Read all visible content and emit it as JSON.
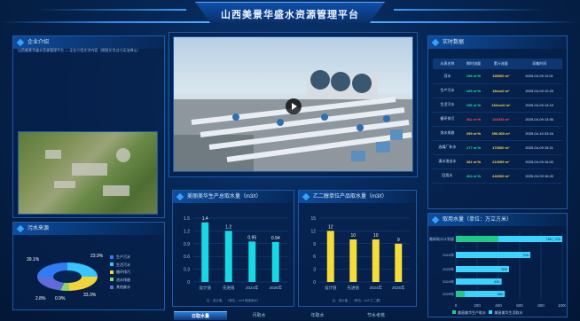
{
  "header": {
    "title": "山西美景华盛水资源管理平台"
  },
  "intro": {
    "title": "企业介绍",
    "text": "山西美景华盛水资源管理平台 — 企业介绍文字内容（原图文字过小无法辨认）"
  },
  "water_source": {
    "title": "污水来源",
    "labels": {
      "tl": "39.1%",
      "tr": "23.9%",
      "bl": "2.8%",
      "bm": "0.9%",
      "br": "33.3%"
    },
    "legend": [
      "生产污水",
      "生活污水",
      "循环排污",
      "浓水排放",
      "其他废水"
    ],
    "colors": [
      "#2f7cf6",
      "#35c6ff",
      "#f1d33a",
      "#8bd36b",
      "#5f6bd8"
    ]
  },
  "realtime": {
    "title": "实时数据",
    "headers": [
      "水表名称",
      "瞬时流量",
      "累计流量",
      "采集时间"
    ],
    "rows": [
      [
        "河水",
        "196 m³/h",
        "135000 m³",
        "2025-04-09 12:01"
      ],
      [
        "生产污水",
        "189 m³/h",
        "18xxx0 m³",
        "2025-04-09 12:25"
      ],
      [
        "生活污水",
        "156 m³/h",
        "116xxx0 m³",
        "2025-04-09 13:15"
      ],
      [
        "循环排污",
        "362 m³/h",
        "163333 m³",
        "2025-04-09 13:36"
      ],
      [
        "浓水排放",
        "299 m³/h",
        "356.800 m³",
        "2025-04-10 03:16"
      ],
      [
        "选煤厂补水",
        "177 m³/h",
        "173000 m³",
        "2025-04-09 15:21"
      ],
      [
        "清水池出水",
        "281 m³/h",
        "213699 m³",
        "2025-04-09 16:00"
      ],
      [
        "回用水",
        "264 m³/h",
        "242000 m³",
        "2025-04-09 16:20"
      ]
    ]
  },
  "left_chart": {
    "title": "美丽美华生产总取水量（m3/t）",
    "categories": [
      "设计值",
      "先进值",
      "2024年",
      "2025年"
    ],
    "values": [
      1.4,
      1.2,
      0.95,
      0.94
    ],
    "yticks": [
      "1.5",
      "1.2",
      "0.9",
      "0.6",
      "0.3",
      "0"
    ],
    "note": "注：设计值 …（单位：m³/t 吨煤用水）"
  },
  "mid_chart": {
    "title": "乙二醇单位产品取水量（m3/t）",
    "categories": [
      "设计值",
      "先进值",
      "2024年",
      "2025年"
    ],
    "values": [
      12,
      10,
      10,
      9
    ],
    "yticks": [
      "15",
      "12",
      "9",
      "6",
      "3",
      "0"
    ],
    "note": "注：设计值 …（单位：m³/t 乙二醇）"
  },
  "withdraw": {
    "title": "取用水量（单位：万立方米）",
    "categories": [
      "最新取水计划量",
      "2024年",
      "2025年",
      "2024年",
      "2025年"
    ],
    "green": [
      780,
      0,
      0,
      0,
      80
    ],
    "cyan": [
      700,
      700,
      500,
      430,
      380
    ],
    "labels": [
      "780 | 700",
      "700",
      "500",
      "430",
      "380"
    ],
    "xticks": [
      "0",
      "200",
      "400",
      "600",
      "800",
      "1000"
    ],
    "legend": [
      "美丽美华生产取水",
      "美丽美华生活取水"
    ]
  },
  "tabs": [
    "日取水量",
    "月取水",
    "年取水",
    "节水考核"
  ],
  "colors": {
    "accent": "#2d8cff",
    "green": "#1ee6a0",
    "yellow": "#ffd84a",
    "red": "#ff4a4a"
  }
}
